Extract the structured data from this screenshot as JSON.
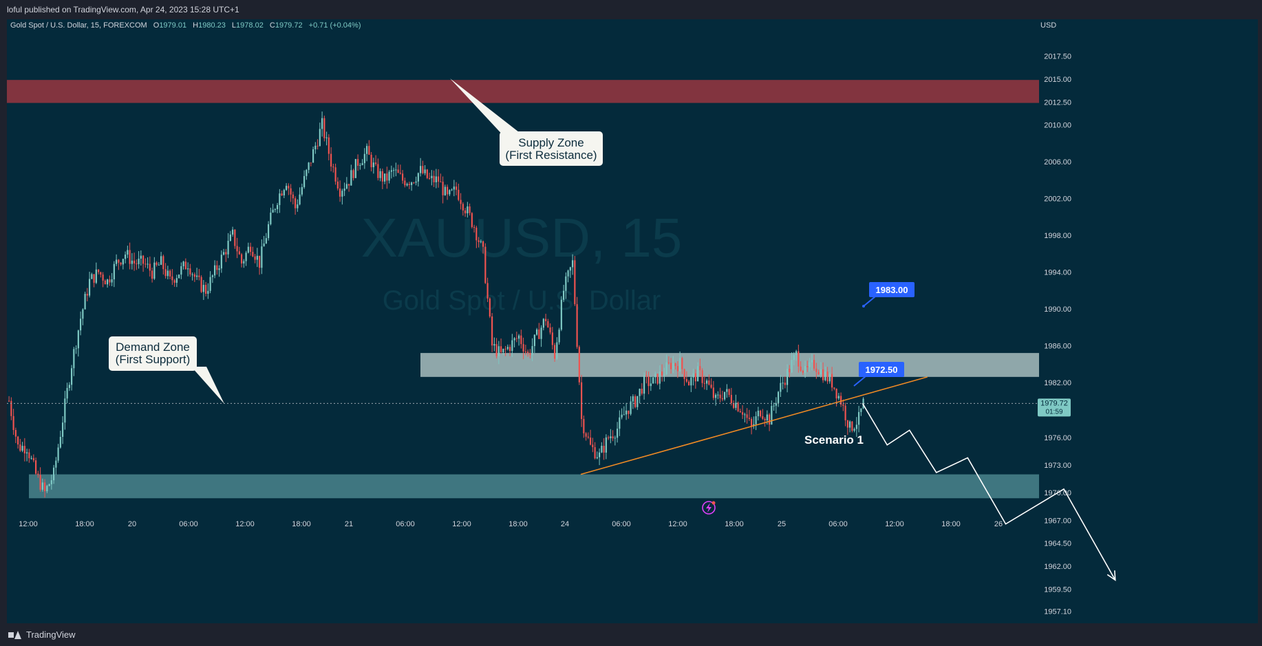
{
  "header": {
    "published": "loful published on TradingView.com, Apr 24, 2023 15:28 UTC+1"
  },
  "footer": {
    "brand": "TradingView"
  },
  "legend": {
    "symbol": "Gold Spot / U.S. Dollar, 15, FOREXCOM",
    "o_label": "O",
    "o_value": "1979.01",
    "h_label": "H",
    "h_value": "1980.23",
    "l_label": "L",
    "l_value": "1978.02",
    "c_label": "C",
    "c_value": "1979.72",
    "change": "+0.71 (+0.04%)"
  },
  "watermark": {
    "ticker": "XAUUSD, 15",
    "name": "Gold Spot / U.S. Dollar"
  },
  "colors": {
    "background": "#042a3b",
    "bull": "#7fc9c4",
    "bear": "#ef5350",
    "supply_zone": "#82343f",
    "resistance_zone": "#8fa7aa",
    "demand_zone": "#3f7680",
    "trendline": "#f08a24",
    "projection": "#ffffff",
    "label_blue": "#2962ff"
  },
  "chart_data": {
    "type": "candlestick",
    "symbol": "XAUUSD",
    "timeframe": "15",
    "currency": "USD",
    "ylim": [
      1955.8,
      2021.5
    ],
    "y_ticks": [
      "2017.50",
      "2015.00",
      "2012.50",
      "2010.00",
      "2006.00",
      "2002.00",
      "1998.00",
      "1994.00",
      "1990.00",
      "1986.00",
      "1982.00",
      "1976.00",
      "1973.00",
      "1970.00",
      "1967.00",
      "1964.50",
      "1962.00",
      "1959.50",
      "1957.10"
    ],
    "x_ticks": [
      "12:00",
      "18:00",
      "20",
      "06:00",
      "12:00",
      "18:00",
      "21",
      "06:00",
      "12:00",
      "18:00",
      "24",
      "06:00",
      "12:00",
      "18:00",
      "25",
      "06:00",
      "12:00",
      "18:00",
      "26"
    ],
    "price_path": [
      [
        0,
        1980
      ],
      [
        4,
        1975
      ],
      [
        8,
        1975
      ],
      [
        12,
        1972
      ],
      [
        16,
        1970
      ],
      [
        20,
        1972
      ],
      [
        24,
        1978
      ],
      [
        28,
        1984
      ],
      [
        32,
        1989
      ],
      [
        36,
        1993
      ],
      [
        40,
        1994
      ],
      [
        44,
        1993
      ],
      [
        48,
        1995
      ],
      [
        52,
        1996
      ],
      [
        56,
        1995
      ],
      [
        60,
        1995
      ],
      [
        64,
        1994
      ],
      [
        68,
        1995
      ],
      [
        72,
        1993
      ],
      [
        76,
        1994
      ],
      [
        80,
        1995
      ],
      [
        84,
        1993
      ],
      [
        88,
        1992
      ],
      [
        92,
        1994
      ],
      [
        96,
        1996
      ],
      [
        100,
        1998
      ],
      [
        104,
        1995
      ],
      [
        108,
        1997
      ],
      [
        112,
        1995
      ],
      [
        116,
        1999
      ],
      [
        120,
        2002
      ],
      [
        124,
        2004
      ],
      [
        128,
        2001
      ],
      [
        132,
        2004
      ],
      [
        136,
        2007
      ],
      [
        140,
        2010
      ],
      [
        144,
        2006
      ],
      [
        148,
        2003
      ],
      [
        152,
        2004
      ],
      [
        156,
        2006
      ],
      [
        160,
        2007
      ],
      [
        164,
        2005
      ],
      [
        168,
        2004
      ],
      [
        172,
        2005
      ],
      [
        176,
        2004
      ],
      [
        180,
        2004
      ],
      [
        184,
        2005
      ],
      [
        188,
        2004
      ],
      [
        192,
        2004
      ],
      [
        196,
        2002
      ],
      [
        200,
        2003
      ],
      [
        204,
        2001
      ],
      [
        208,
        1999
      ],
      [
        212,
        1996
      ],
      [
        216,
        1986
      ],
      [
        220,
        1985
      ],
      [
        224,
        1986
      ],
      [
        228,
        1987
      ],
      [
        232,
        1985
      ],
      [
        236,
        1987
      ],
      [
        240,
        1989
      ],
      [
        244,
        1985
      ],
      [
        248,
        1992
      ],
      [
        252,
        1995
      ],
      [
        256,
        1978
      ],
      [
        260,
        1975
      ],
      [
        264,
        1974
      ],
      [
        268,
        1976
      ],
      [
        272,
        1977
      ],
      [
        276,
        1979
      ],
      [
        280,
        1980
      ],
      [
        284,
        1982
      ],
      [
        288,
        1982
      ],
      [
        292,
        1983
      ],
      [
        296,
        1984
      ],
      [
        300,
        1984
      ],
      [
        304,
        1982
      ],
      [
        308,
        1983
      ],
      [
        312,
        1982
      ],
      [
        316,
        1980
      ],
      [
        320,
        1981
      ],
      [
        324,
        1980
      ],
      [
        328,
        1979
      ],
      [
        332,
        1977
      ],
      [
        336,
        1979
      ],
      [
        340,
        1978
      ],
      [
        344,
        1981
      ],
      [
        348,
        1983
      ],
      [
        352,
        1985
      ],
      [
        356,
        1983
      ],
      [
        360,
        1984
      ],
      [
        364,
        1983
      ],
      [
        368,
        1982
      ],
      [
        372,
        1980
      ],
      [
        376,
        1977
      ],
      [
        380,
        1978
      ],
      [
        382,
        1979.72
      ]
    ],
    "last_price": "1979.72",
    "countdown": "01:59",
    "zones": [
      {
        "name": "supply",
        "from": 2012.4,
        "to": 2014.9
      },
      {
        "name": "resistance",
        "from": 1982.6,
        "to": 1985.2
      },
      {
        "name": "demand",
        "from": 1969.4,
        "to": 1972.0
      }
    ],
    "trendline": [
      [
        256,
        1972.0
      ],
      [
        411,
        1982.6
      ]
    ],
    "scenario_path": [
      [
        382,
        1979.72
      ],
      [
        393,
        1975.2
      ],
      [
        403,
        1976.8
      ],
      [
        415,
        1972.2
      ],
      [
        429,
        1973.8
      ],
      [
        446,
        1966.6
      ],
      [
        472,
        1970.4
      ],
      [
        495,
        1960.5
      ]
    ],
    "price_labels": [
      "1983.00",
      "1972.50"
    ]
  },
  "annotations": {
    "supply_line1": "Supply Zone",
    "supply_line2": "(First Resistance)",
    "demand_line1": "Demand Zone",
    "demand_line2": "(First Support)",
    "scenario": "Scenario 1"
  }
}
